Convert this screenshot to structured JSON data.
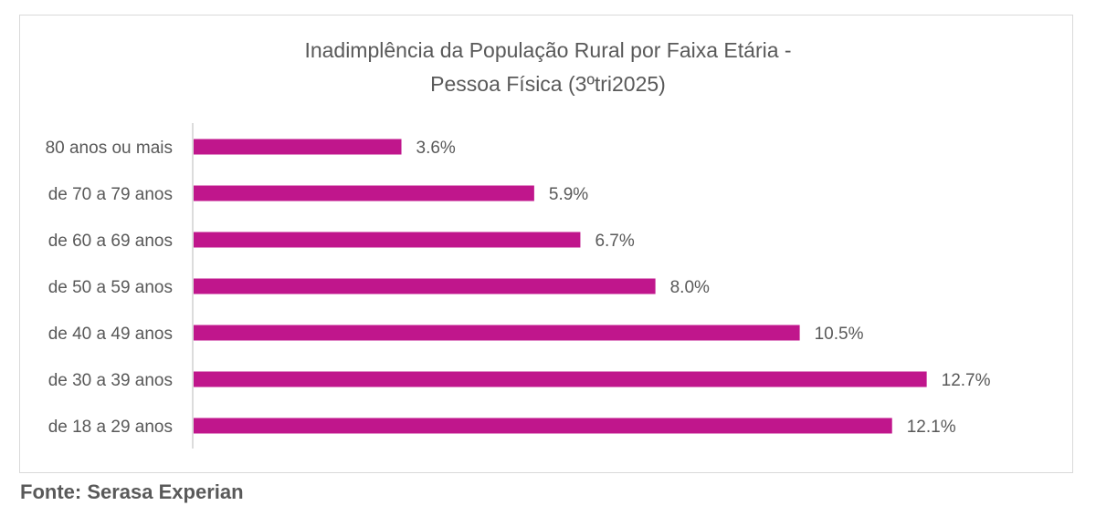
{
  "chart_data": {
    "type": "bar",
    "orientation": "horizontal",
    "title_lines": [
      "Inadimplência da População Rural por Faixa Etária -",
      "Pessoa Física (3ºtri2025)"
    ],
    "categories": [
      "80 anos ou mais",
      "de 70 a 79 anos",
      "de 60 a 69 anos",
      "de 50 a 59 anos",
      "de 40 a 49 anos",
      "de 30 a 39 anos",
      "de 18 a 29 anos"
    ],
    "values": [
      3.6,
      5.9,
      6.7,
      8.0,
      10.5,
      12.7,
      12.1
    ],
    "value_labels": [
      "3.6%",
      "5.9%",
      "6.7%",
      "8.0%",
      "10.5%",
      "12.7%",
      "12.1%"
    ],
    "unit": "%",
    "xlim": [
      0,
      14
    ],
    "bar_color": "#c0168c",
    "grid": false,
    "legend": "none"
  },
  "footer": {
    "source": "Fonte: Serasa Experian"
  }
}
